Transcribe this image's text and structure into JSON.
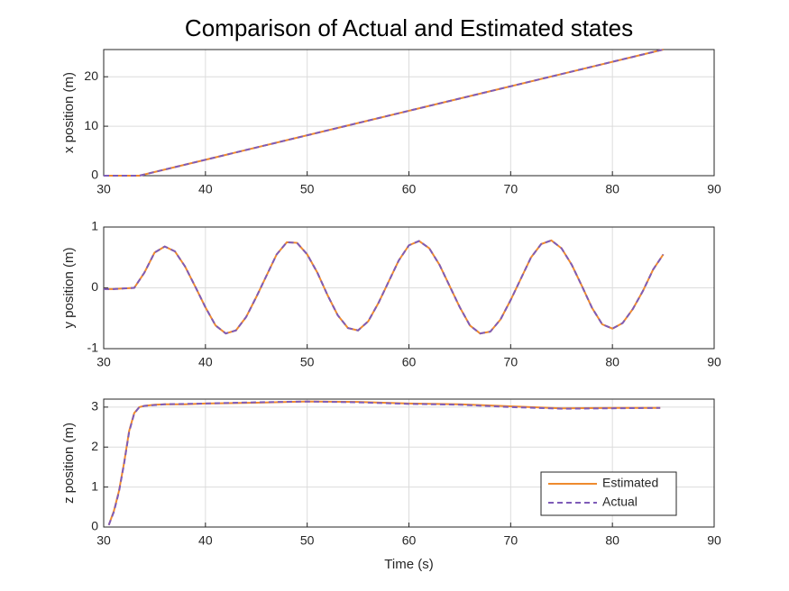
{
  "chart_data": [
    {
      "type": "line",
      "title": "Comparison of Actual and Estimated states",
      "ylabel": "x position (m)",
      "x": [
        30,
        33.5,
        85
      ],
      "xlim": [
        30,
        90
      ],
      "xticks": [
        30,
        40,
        50,
        60,
        70,
        80,
        90
      ],
      "ylim": [
        0,
        25.5
      ],
      "yticks": [
        0,
        10,
        20
      ],
      "grid": true,
      "series": [
        {
          "name": "Estimated",
          "color": "#EE8A2E",
          "line_style": "solid",
          "values": [
            0,
            0,
            25.5
          ]
        },
        {
          "name": "Actual",
          "color": "#7E5CB8",
          "line_style": "dashed",
          "values": [
            0,
            0,
            25.5
          ]
        }
      ]
    },
    {
      "type": "line",
      "ylabel": "y position (m)",
      "x": [
        30,
        31,
        32,
        33,
        34,
        35,
        36,
        37,
        38,
        39,
        40,
        41,
        42,
        43,
        44,
        45,
        46,
        47,
        48,
        49,
        50,
        51,
        52,
        53,
        54,
        55,
        56,
        57,
        58,
        59,
        60,
        61,
        62,
        63,
        64,
        65,
        66,
        67,
        68,
        69,
        70,
        71,
        72,
        73,
        74,
        75,
        76,
        77,
        78,
        79,
        80,
        81,
        82,
        83,
        84,
        85
      ],
      "xlim": [
        30,
        90
      ],
      "xticks": [
        30,
        40,
        50,
        60,
        70,
        80,
        90
      ],
      "ylim": [
        -1,
        1
      ],
      "yticks": [
        -1,
        0,
        1
      ],
      "grid": true,
      "series": [
        {
          "name": "Estimated",
          "color": "#EE8A2E",
          "line_style": "solid",
          "values": [
            -0.02,
            -0.02,
            -0.01,
            0.0,
            0.25,
            0.58,
            0.68,
            0.6,
            0.35,
            0.02,
            -0.32,
            -0.62,
            -0.75,
            -0.7,
            -0.48,
            -0.15,
            0.2,
            0.55,
            0.75,
            0.74,
            0.55,
            0.25,
            -0.12,
            -0.45,
            -0.66,
            -0.7,
            -0.55,
            -0.25,
            0.1,
            0.45,
            0.7,
            0.77,
            0.65,
            0.38,
            0.03,
            -0.32,
            -0.62,
            -0.75,
            -0.72,
            -0.52,
            -0.2,
            0.15,
            0.5,
            0.72,
            0.78,
            0.65,
            0.38,
            0.03,
            -0.33,
            -0.6,
            -0.67,
            -0.58,
            -0.35,
            -0.05,
            0.3,
            0.55
          ]
        },
        {
          "name": "Actual",
          "color": "#7E5CB8",
          "line_style": "dashed",
          "values": [
            -0.02,
            -0.02,
            -0.01,
            0.0,
            0.25,
            0.58,
            0.68,
            0.6,
            0.35,
            0.02,
            -0.32,
            -0.62,
            -0.75,
            -0.7,
            -0.48,
            -0.15,
            0.2,
            0.55,
            0.75,
            0.74,
            0.55,
            0.25,
            -0.12,
            -0.45,
            -0.66,
            -0.7,
            -0.55,
            -0.25,
            0.1,
            0.45,
            0.7,
            0.77,
            0.65,
            0.38,
            0.03,
            -0.32,
            -0.62,
            -0.75,
            -0.72,
            -0.52,
            -0.2,
            0.15,
            0.5,
            0.72,
            0.78,
            0.65,
            0.38,
            0.03,
            -0.33,
            -0.6,
            -0.67,
            -0.58,
            -0.35,
            -0.05,
            0.3,
            0.55
          ]
        }
      ]
    },
    {
      "type": "line",
      "ylabel": "z position (m)",
      "xlabel": "Time (s)",
      "x": [
        30.5,
        31,
        31.5,
        32,
        32.5,
        33,
        33.5,
        34,
        35,
        36,
        38,
        40,
        45,
        50,
        55,
        60,
        65,
        70,
        75,
        80,
        84.7
      ],
      "xlim": [
        30,
        90
      ],
      "xticks": [
        30,
        40,
        50,
        60,
        70,
        80,
        90
      ],
      "ylim": [
        0,
        3.2
      ],
      "yticks": [
        0,
        1,
        2,
        3
      ],
      "grid": true,
      "legend": "southeast",
      "series": [
        {
          "name": "Estimated",
          "color": "#EE8A2E",
          "line_style": "solid",
          "values": [
            0.05,
            0.4,
            0.9,
            1.6,
            2.4,
            2.85,
            3.0,
            3.03,
            3.06,
            3.07,
            3.07,
            3.09,
            3.11,
            3.14,
            3.13,
            3.09,
            3.07,
            3.02,
            2.97,
            2.98,
            2.98
          ]
        },
        {
          "name": "Actual",
          "color": "#7E5CB8",
          "line_style": "dashed",
          "values": [
            0.05,
            0.38,
            0.88,
            1.58,
            2.38,
            2.84,
            3.0,
            3.03,
            3.05,
            3.07,
            3.08,
            3.09,
            3.12,
            3.14,
            3.12,
            3.08,
            3.06,
            3.0,
            2.96,
            2.97,
            2.98
          ]
        }
      ]
    }
  ]
}
